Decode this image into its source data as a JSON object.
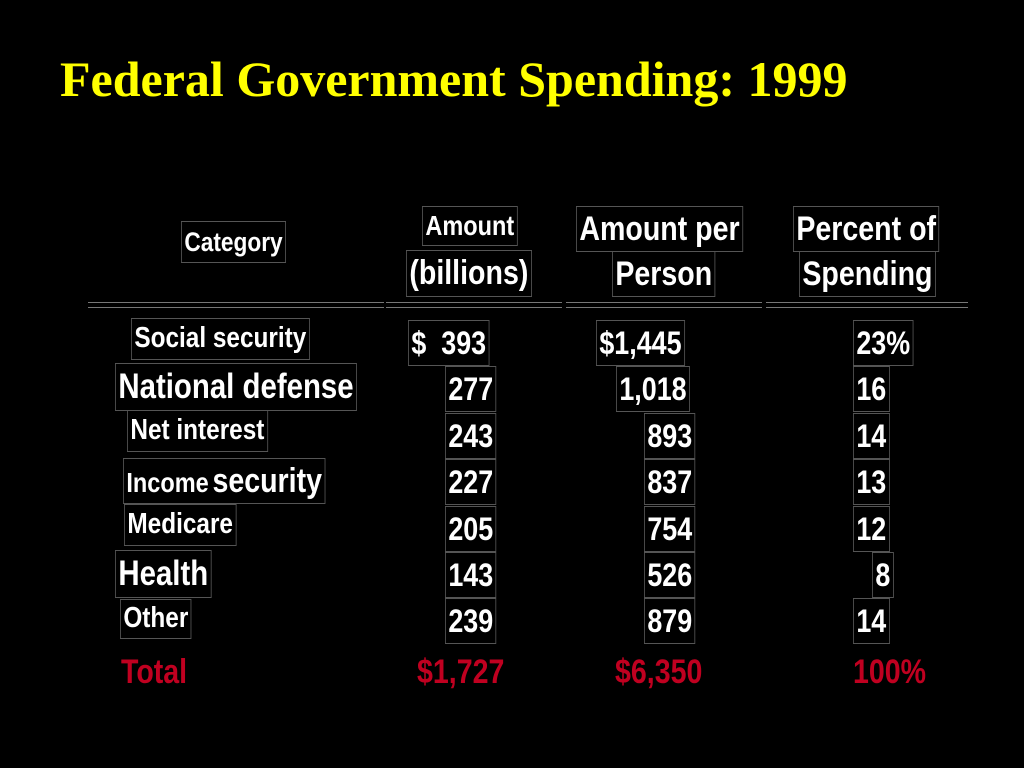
{
  "title": "Federal Government Spending: 1999",
  "headers": {
    "category": "Category",
    "amount_line1": "Amount",
    "amount_line2": "(billions)",
    "per_person_line1": "Amount per",
    "per_person_line2": "Person",
    "percent_line1": "Percent of",
    "percent_line2": "Spending"
  },
  "rows": [
    {
      "category": "Social security",
      "amount": "$  393",
      "per_person": "$1,445",
      "percent": "23%"
    },
    {
      "category": "National defense",
      "amount": "277",
      "per_person": "1,018",
      "percent": "16"
    },
    {
      "category": "Net interest",
      "amount": "243",
      "per_person": "893",
      "percent": "14"
    },
    {
      "category_part1": "Income",
      "category_part2": "security",
      "amount": "227",
      "per_person": "837",
      "percent": "13"
    },
    {
      "category": "Medicare",
      "amount": "205",
      "per_person": "754",
      "percent": "12"
    },
    {
      "category": "Health",
      "amount": "143",
      "per_person": "526",
      "percent": "8"
    },
    {
      "category": "Other",
      "amount": "239",
      "per_person": "879",
      "percent": "14"
    }
  ],
  "total": {
    "label": "Total",
    "amount": "$1,727",
    "per_person": "$6,350",
    "percent": "100%"
  },
  "colors": {
    "title": "#ffff00",
    "text": "#ffffff",
    "total": "#c00020",
    "background": "#000000"
  }
}
